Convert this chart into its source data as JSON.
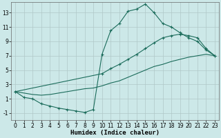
{
  "bg_color": "#cce8e8",
  "grid_color": "#b0c8c8",
  "line_color": "#1a6b5a",
  "xlabel": "Humidex (Indice chaleur)",
  "xlim": [
    -0.5,
    23.5
  ],
  "ylim": [
    -2.0,
    14.5
  ],
  "xticks": [
    0,
    1,
    2,
    3,
    4,
    5,
    6,
    7,
    8,
    9,
    10,
    11,
    12,
    13,
    14,
    15,
    16,
    17,
    18,
    19,
    20,
    21,
    22,
    23
  ],
  "yticks": [
    -1,
    1,
    3,
    5,
    7,
    9,
    11,
    13
  ],
  "series1_x": [
    0,
    1,
    2,
    3,
    4,
    5,
    6,
    7,
    8,
    9,
    10,
    11,
    12,
    13,
    14,
    15,
    16,
    17,
    18,
    19,
    20,
    21,
    22,
    23
  ],
  "series1_y": [
    2.0,
    1.2,
    1.0,
    0.3,
    0.0,
    -0.3,
    -0.5,
    -0.7,
    -0.9,
    -0.5,
    7.2,
    10.5,
    11.5,
    13.2,
    13.5,
    14.2,
    13.0,
    11.5,
    11.0,
    10.2,
    9.5,
    9.0,
    7.8,
    7.0
  ],
  "series2_x": [
    0,
    10,
    11,
    12,
    13,
    14,
    15,
    16,
    17,
    18,
    19,
    20,
    21,
    22,
    23
  ],
  "series2_y": [
    2.0,
    4.5,
    5.2,
    5.8,
    6.5,
    7.2,
    8.0,
    8.8,
    9.5,
    9.8,
    10.0,
    9.8,
    9.5,
    8.0,
    7.0
  ],
  "series3_x": [
    0,
    1,
    2,
    3,
    4,
    5,
    6,
    7,
    8,
    9,
    10,
    11,
    12,
    13,
    14,
    15,
    16,
    17,
    18,
    19,
    20,
    21,
    22,
    23
  ],
  "series3_y": [
    2.0,
    1.8,
    1.6,
    1.5,
    1.6,
    1.8,
    2.0,
    2.2,
    2.4,
    2.5,
    2.8,
    3.2,
    3.5,
    4.0,
    4.5,
    5.0,
    5.5,
    5.8,
    6.2,
    6.5,
    6.8,
    7.0,
    7.2,
    7.0
  ],
  "marker": "+",
  "markersize": 3,
  "linewidth": 0.8,
  "tick_fontsize": 5.5,
  "xlabel_fontsize": 6.5
}
